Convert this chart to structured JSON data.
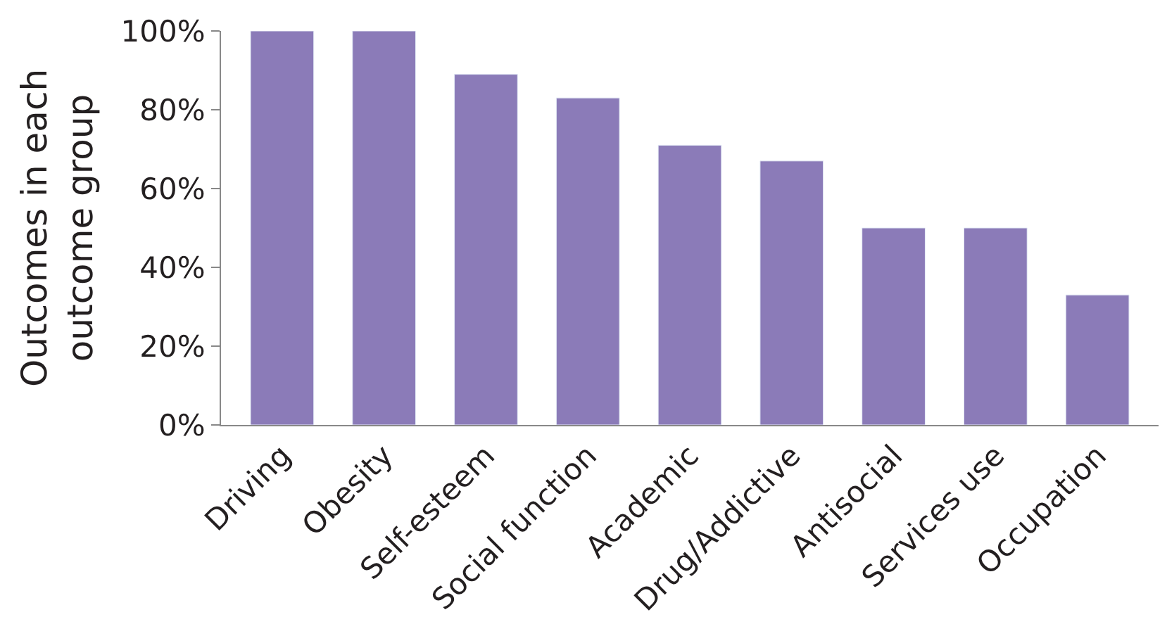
{
  "chart_data": {
    "type": "bar",
    "ylabel": "Outcomes in each\noutcome group",
    "categories": [
      "Driving",
      "Obesity",
      "Self-esteem",
      "Social function",
      "Academic",
      "Drug/Addictive",
      "Antisocial",
      "Services use",
      "Occupation"
    ],
    "values": [
      100,
      100,
      89,
      83,
      71,
      67,
      50,
      50,
      33
    ],
    "color": "#8b7bb8",
    "ylim": [
      0,
      100
    ],
    "yticks": [
      {
        "value": 0,
        "label": "0%"
      },
      {
        "value": 20,
        "label": "20%"
      },
      {
        "value": 40,
        "label": "40%"
      },
      {
        "value": 60,
        "label": "60%"
      },
      {
        "value": 80,
        "label": "80%"
      },
      {
        "value": 100,
        "label": "100%"
      }
    ]
  }
}
